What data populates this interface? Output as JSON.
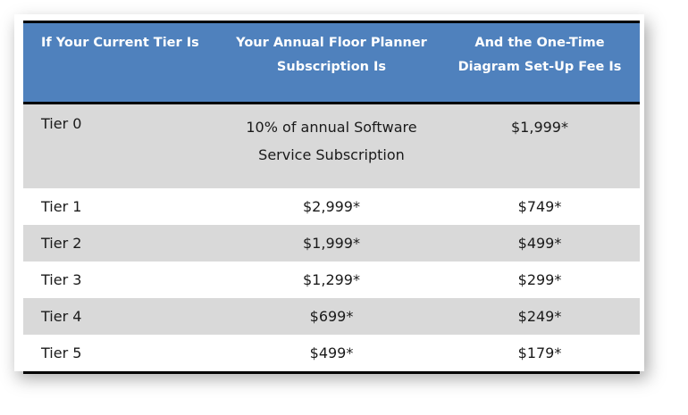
{
  "table": {
    "headers": [
      "If Your Current Tier Is",
      "Your Annual Floor Planner Subscription Is",
      "And the One-Time Diagram Set-Up Fee Is"
    ],
    "header_lines": [
      [
        "If Your Current Tier Is"
      ],
      [
        "Your Annual Floor Planner",
        "Subscription Is"
      ],
      [
        "And the One-Time",
        "Diagram Set-Up Fee Is"
      ]
    ],
    "rows": [
      {
        "tier": "Tier 0",
        "subscription_lines": [
          "10% of annual Software",
          "Service Subscription"
        ],
        "fee": "$1,999*"
      },
      {
        "tier": "Tier 1",
        "subscription": "$2,999*",
        "fee": "$749*"
      },
      {
        "tier": "Tier 2",
        "subscription": "$1,999*",
        "fee": "$499*"
      },
      {
        "tier": "Tier 3",
        "subscription": "$1,299*",
        "fee": "$299*"
      },
      {
        "tier": "Tier 4",
        "subscription": "$699*",
        "fee": "$249*"
      },
      {
        "tier": "Tier 5",
        "subscription": "$499*",
        "fee": "$179*"
      }
    ]
  },
  "colors": {
    "header_bg": "#4f81bd",
    "header_text": "#ffffff",
    "row_shade": "#d9d9d9",
    "rule": "#000000"
  }
}
